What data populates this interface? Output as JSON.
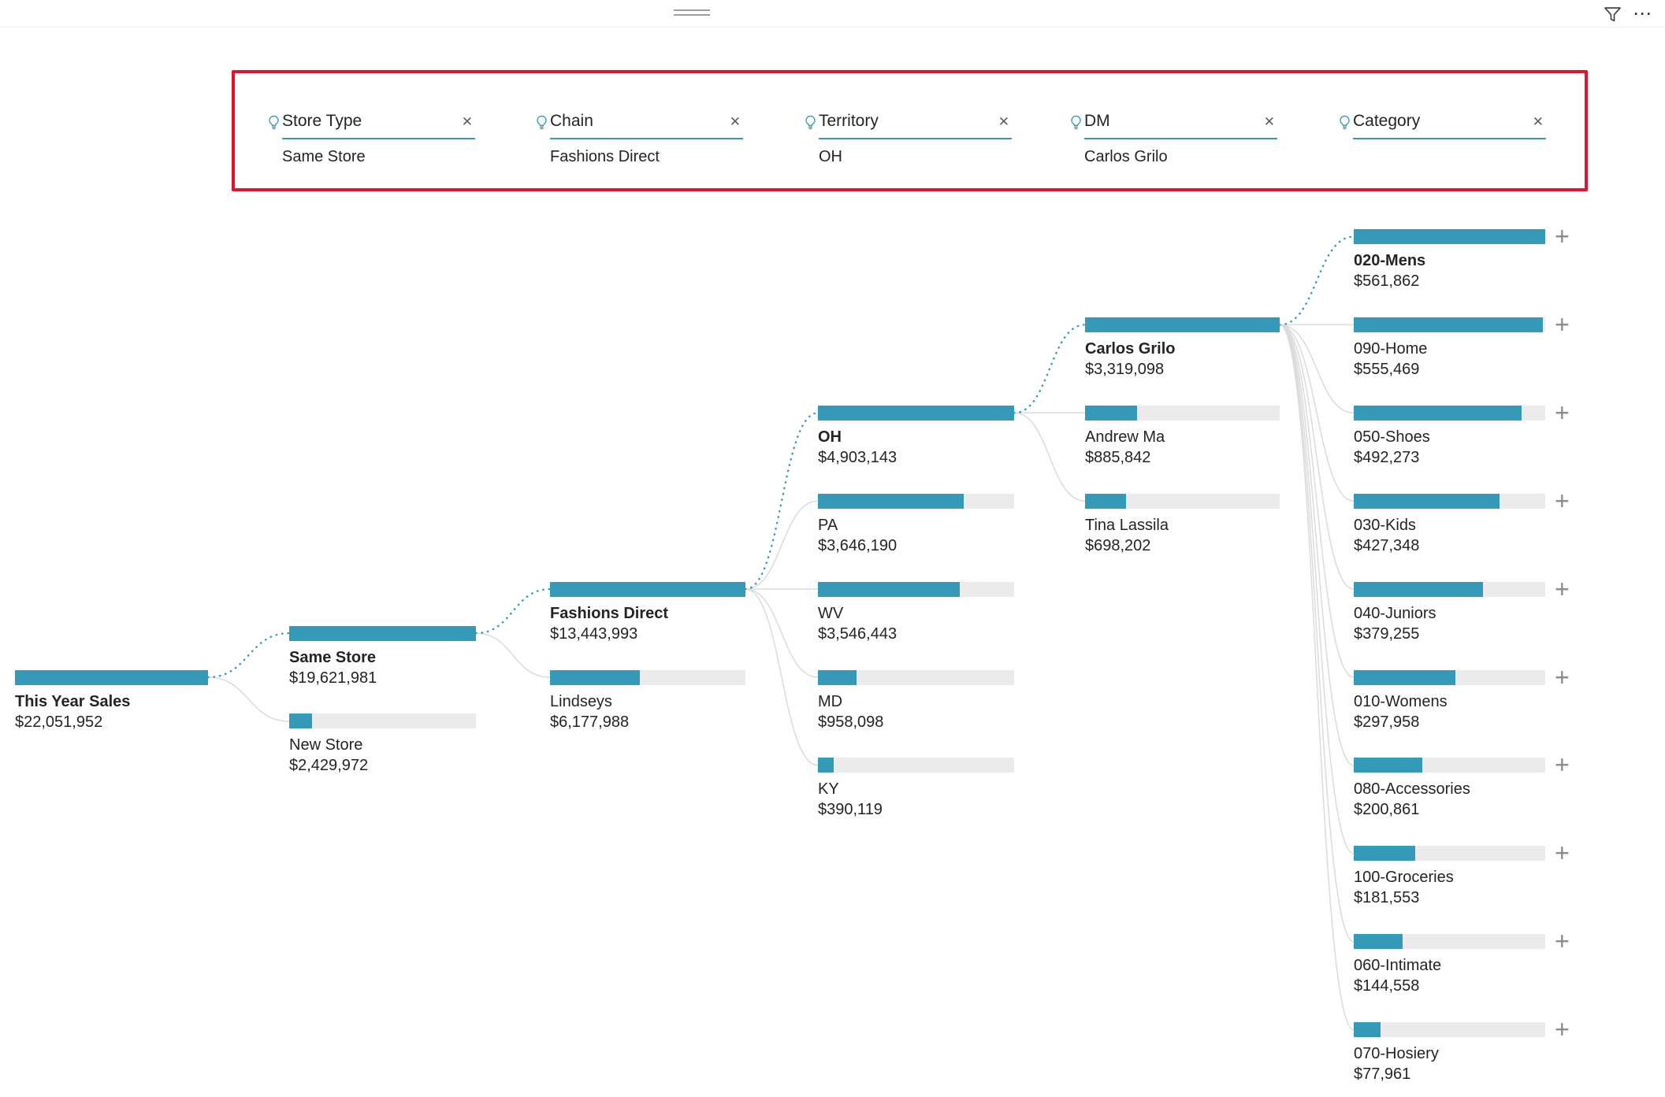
{
  "visual_header": {
    "more_options": "⋯"
  },
  "colors": {
    "accent": "#3599B8",
    "bar_track": "#EBEBEB",
    "connector": "#DBDBDB",
    "selected_connector": "#3599B8",
    "highlight": "#E8112D",
    "text": "#252423",
    "muted": "#605E5C",
    "icon": "#3B3A39",
    "plus": "#8C8C8C",
    "handle": "#9E9E9E"
  },
  "breadcrumbs": [
    {
      "label": "Store Type",
      "value": "Same Store"
    },
    {
      "label": "Chain",
      "value": "Fashions Direct"
    },
    {
      "label": "Territory",
      "value": "OH"
    },
    {
      "label": "DM",
      "value": "Carlos Grilo"
    },
    {
      "label": "Category",
      "value": ""
    }
  ],
  "chart_data": {
    "type": "decomposition-tree",
    "measure": "This Year Sales",
    "levels": [
      "Store Type",
      "Chain",
      "Territory",
      "DM",
      "Category"
    ],
    "root_total_display": "$22,051,952",
    "nodes": [
      {
        "id": "root",
        "col": 0,
        "row": 5,
        "label": "This Year Sales",
        "display": "$22,051,952",
        "value": 22051952,
        "selected": true
      },
      {
        "id": "same-store",
        "col": 1,
        "row": 4.5,
        "label": "Same Store",
        "display": "$19,621,981",
        "value": 19621981,
        "selected": true,
        "parent": "root"
      },
      {
        "id": "new-store",
        "col": 1,
        "row": 5.5,
        "label": "New Store",
        "display": "$2,429,972",
        "value": 2429972,
        "parent": "root"
      },
      {
        "id": "fashions-direct",
        "col": 2,
        "row": 4,
        "label": "Fashions Direct",
        "display": "$13,443,993",
        "value": 13443993,
        "selected": true,
        "parent": "same-store"
      },
      {
        "id": "lindseys",
        "col": 2,
        "row": 5,
        "label": "Lindseys",
        "display": "$6,177,988",
        "value": 6177988,
        "parent": "same-store"
      },
      {
        "id": "oh",
        "col": 3,
        "row": 2,
        "label": "OH",
        "display": "$4,903,143",
        "value": 4903143,
        "selected": true,
        "parent": "fashions-direct"
      },
      {
        "id": "pa",
        "col": 3,
        "row": 3,
        "label": "PA",
        "display": "$3,646,190",
        "value": 3646190,
        "parent": "fashions-direct"
      },
      {
        "id": "wv",
        "col": 3,
        "row": 4,
        "label": "WV",
        "display": "$3,546,443",
        "value": 3546443,
        "parent": "fashions-direct"
      },
      {
        "id": "md",
        "col": 3,
        "row": 5,
        "label": "MD",
        "display": "$958,098",
        "value": 958098,
        "parent": "fashions-direct"
      },
      {
        "id": "ky",
        "col": 3,
        "row": 6,
        "label": "KY",
        "display": "$390,119",
        "value": 390119,
        "parent": "fashions-direct"
      },
      {
        "id": "carlos-grilo",
        "col": 4,
        "row": 1,
        "label": "Carlos Grilo",
        "display": "$3,319,098",
        "value": 3319098,
        "selected": true,
        "parent": "oh"
      },
      {
        "id": "andrew-ma",
        "col": 4,
        "row": 2,
        "label": "Andrew Ma",
        "display": "$885,842",
        "value": 885842,
        "parent": "oh"
      },
      {
        "id": "tina-lassila",
        "col": 4,
        "row": 3,
        "label": "Tina Lassila",
        "display": "$698,202",
        "value": 698202,
        "parent": "oh"
      },
      {
        "id": "cat-020-mens",
        "col": 5,
        "row": 0,
        "label": "020-Mens",
        "display": "$561,862",
        "value": 561862,
        "selected": true,
        "parent": "carlos-grilo",
        "expandable": true
      },
      {
        "id": "cat-090-home",
        "col": 5,
        "row": 1,
        "label": "090-Home",
        "display": "$555,469",
        "value": 555469,
        "parent": "carlos-grilo",
        "expandable": true
      },
      {
        "id": "cat-050-shoes",
        "col": 5,
        "row": 2,
        "label": "050-Shoes",
        "display": "$492,273",
        "value": 492273,
        "parent": "carlos-grilo",
        "expandable": true
      },
      {
        "id": "cat-030-kids",
        "col": 5,
        "row": 3,
        "label": "030-Kids",
        "display": "$427,348",
        "value": 427348,
        "parent": "carlos-grilo",
        "expandable": true
      },
      {
        "id": "cat-040-juniors",
        "col": 5,
        "row": 4,
        "label": "040-Juniors",
        "display": "$379,255",
        "value": 379255,
        "parent": "carlos-grilo",
        "expandable": true
      },
      {
        "id": "cat-010-womens",
        "col": 5,
        "row": 5,
        "label": "010-Womens",
        "display": "$297,958",
        "value": 297958,
        "parent": "carlos-grilo",
        "expandable": true
      },
      {
        "id": "cat-080-accessories",
        "col": 5,
        "row": 6,
        "label": "080-Accessories",
        "display": "$200,861",
        "value": 200861,
        "parent": "carlos-grilo",
        "expandable": true
      },
      {
        "id": "cat-100-groceries",
        "col": 5,
        "row": 7,
        "label": "100-Groceries",
        "display": "$181,553",
        "value": 181553,
        "parent": "carlos-grilo",
        "expandable": true
      },
      {
        "id": "cat-060-intimate",
        "col": 5,
        "row": 8,
        "label": "060-Intimate",
        "display": "$144,558",
        "value": 144558,
        "parent": "carlos-grilo",
        "expandable": true
      },
      {
        "id": "cat-070-hosiery",
        "col": 5,
        "row": 9,
        "label": "070-Hosiery",
        "display": "$77,961",
        "value": 77961,
        "parent": "carlos-grilo",
        "expandable": true
      }
    ]
  }
}
